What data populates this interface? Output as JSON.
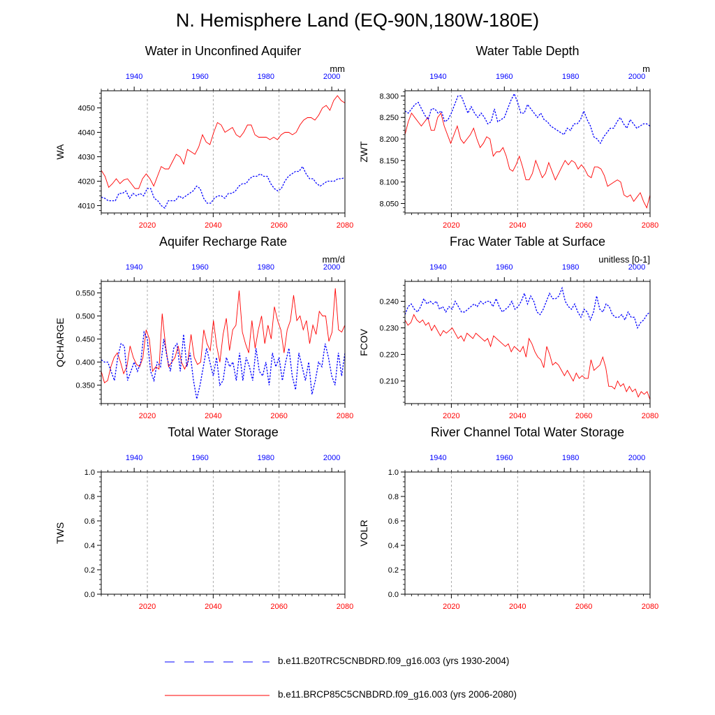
{
  "page": {
    "title": "N. Hemisphere Land (EQ-90N,180W-180E)"
  },
  "colors": {
    "rcp": "#ff0000",
    "hist": "#0000ff",
    "grid": "#999999",
    "axis": "#000000"
  },
  "legend": {
    "hist_label": "b.e11.B20TRC5CNBDRD.f09_g16.003 (yrs 1930-2004)",
    "rcp_label": "b.e11.BRCP85C5CNBDRD.f09_g16.003 (yrs 2006-2080)"
  },
  "chart_data": [
    {
      "type": "line",
      "title": "Water in Unconfined Aquifer",
      "ylabel": "WA",
      "units": "mm",
      "x_bottom": {
        "range": [
          2006,
          2080
        ],
        "ticks": [
          2020,
          2040,
          2060,
          2080
        ]
      },
      "x_top": {
        "range": [
          1930,
          2004
        ],
        "ticks": [
          1940,
          1960,
          1980,
          2000
        ]
      },
      "ylim": [
        4007,
        4057
      ],
      "yticks": [
        4010,
        4020,
        4030,
        4040,
        4050
      ],
      "ytick_labels": [
        "4010",
        "4020",
        "4030",
        "4040",
        "4050"
      ],
      "series": [
        {
          "name": "b.e11.BRCP85C5CNBDRD.f09_g16.003 (yrs 2006-2080)",
          "color": "#ff0000",
          "dashed": false,
          "values": [
            4024.5,
            4022,
            4017.5,
            4019,
            4021,
            4019,
            4020.5,
            4021,
            4019,
            4017,
            4017,
            4021,
            4023,
            4021,
            4018,
            4022,
            4026,
            4025,
            4025,
            4028,
            4031,
            4030,
            4027,
            4033,
            4032,
            4031,
            4034,
            4039,
            4036,
            4035,
            4040,
            4044,
            4043,
            4040,
            4041,
            4042,
            4039,
            4038,
            4040,
            4043,
            4043,
            4039,
            4038,
            4038,
            4038,
            4037,
            4038,
            4037,
            4039,
            4040,
            4040,
            4039,
            4040,
            4043,
            4045,
            4046,
            4046,
            4045,
            4047,
            4050,
            4051,
            4049,
            4053,
            4055,
            4053,
            4052
          ]
        },
        {
          "name": "b.e11.B20TRC5CNBDRD.f09_g16.003 (yrs 1930-2004)",
          "color": "#0000ff",
          "dashed": true,
          "values": [
            4013.5,
            4013,
            4012,
            4012,
            4012,
            4015,
            4015,
            4016,
            4013,
            4015,
            4014,
            4015,
            4014,
            4017,
            4017,
            4013,
            4012,
            4010,
            4009,
            4012,
            4012,
            4012,
            4014,
            4013,
            4014,
            4015,
            4016,
            4018,
            4017,
            4013,
            4011,
            4011,
            4013,
            4014,
            4014,
            4013,
            4015,
            4015,
            4016,
            4018,
            4019,
            4019,
            4021,
            4022,
            4022,
            4023,
            4022,
            4022,
            4019,
            4017,
            4016,
            4017,
            4020,
            4022,
            4023,
            4024,
            4024,
            4026,
            4023,
            4021,
            4021,
            4019,
            4018,
            4019,
            4020,
            4020,
            4020,
            4021,
            4021,
            4021.5
          ]
        }
      ]
    },
    {
      "type": "line",
      "title": "Water Table Depth",
      "ylabel": "ZWT",
      "units": "m",
      "x_bottom": {
        "range": [
          2006,
          2080
        ],
        "ticks": [
          2020,
          2040,
          2060,
          2080
        ]
      },
      "x_top": {
        "range": [
          1930,
          2004
        ],
        "ticks": [
          1940,
          1960,
          1980,
          2000
        ]
      },
      "ylim": [
        8.028,
        8.312
      ],
      "yticks": [
        8.05,
        8.1,
        8.15,
        8.2,
        8.25,
        8.3
      ],
      "ytick_labels": [
        "8.050",
        "8.100",
        "8.150",
        "8.200",
        "8.250",
        "8.300"
      ],
      "series": [
        {
          "name": "b.e11.BRCP85C5CNBDRD.f09_g16.003 (yrs 2006-2080)",
          "color": "#ff0000",
          "dashed": false,
          "values": [
            8.21,
            8.24,
            8.26,
            8.25,
            8.24,
            8.23,
            8.24,
            8.25,
            8.22,
            8.22,
            8.25,
            8.26,
            8.23,
            8.21,
            8.19,
            8.21,
            8.23,
            8.2,
            8.19,
            8.2,
            8.21,
            8.225,
            8.2,
            8.18,
            8.19,
            8.205,
            8.2,
            8.16,
            8.17,
            8.17,
            8.18,
            8.16,
            8.13,
            8.125,
            8.14,
            8.16,
            8.135,
            8.105,
            8.105,
            8.12,
            8.15,
            8.13,
            8.11,
            8.12,
            8.145,
            8.125,
            8.105,
            8.12,
            8.135,
            8.15,
            8.14,
            8.15,
            8.145,
            8.13,
            8.14,
            8.13,
            8.115,
            8.11,
            8.135,
            8.135,
            8.13,
            8.115,
            8.09,
            8.095,
            8.1,
            8.105,
            8.1,
            8.07,
            8.065,
            8.07,
            8.055,
            8.065,
            8.075,
            8.055,
            8.04,
            8.07
          ]
        },
        {
          "name": "b.e11.B20TRC5CNBDRD.f09_g16.003 (yrs 1930-2004)",
          "color": "#0000ff",
          "dashed": true,
          "values": [
            8.265,
            8.26,
            8.27,
            8.28,
            8.285,
            8.27,
            8.255,
            8.245,
            8.27,
            8.27,
            8.26,
            8.265,
            8.24,
            8.245,
            8.26,
            8.28,
            8.3,
            8.3,
            8.28,
            8.26,
            8.275,
            8.26,
            8.25,
            8.26,
            8.25,
            8.235,
            8.24,
            8.27,
            8.24,
            8.245,
            8.25,
            8.27,
            8.29,
            8.305,
            8.285,
            8.26,
            8.26,
            8.28,
            8.27,
            8.26,
            8.25,
            8.26,
            8.245,
            8.24,
            8.23,
            8.225,
            8.22,
            8.215,
            8.21,
            8.225,
            8.22,
            8.235,
            8.235,
            8.245,
            8.265,
            8.245,
            8.23,
            8.205,
            8.2,
            8.19,
            8.205,
            8.215,
            8.225,
            8.225,
            8.24,
            8.25,
            8.235,
            8.225,
            8.245,
            8.235,
            8.225,
            8.23,
            8.235,
            8.235,
            8.23
          ]
        }
      ]
    },
    {
      "type": "line",
      "title": "Aquifer Recharge Rate",
      "ylabel": "QCHARGE",
      "units": "mm/d",
      "x_bottom": {
        "range": [
          2006,
          2080
        ],
        "ticks": [
          2020,
          2040,
          2060,
          2080
        ]
      },
      "x_top": {
        "range": [
          1930,
          2004
        ],
        "ticks": [
          1940,
          1960,
          1980,
          2000
        ]
      },
      "ylim": [
        0.31,
        0.575
      ],
      "yticks": [
        0.35,
        0.4,
        0.45,
        0.5,
        0.55
      ],
      "ytick_labels": [
        "0.350",
        "0.400",
        "0.450",
        "0.500",
        "0.550"
      ],
      "series": [
        {
          "name": "b.e11.BRCP85C5CNBDRD.f09_g16.003 (yrs 2006-2080)",
          "color": "#ff0000",
          "dashed": false,
          "values": [
            0.38,
            0.355,
            0.36,
            0.39,
            0.41,
            0.42,
            0.4,
            0.375,
            0.39,
            0.435,
            0.41,
            0.395,
            0.39,
            0.41,
            0.47,
            0.45,
            0.38,
            0.39,
            0.385,
            0.505,
            0.44,
            0.39,
            0.4,
            0.41,
            0.435,
            0.4,
            0.385,
            0.4,
            0.46,
            0.41,
            0.395,
            0.4,
            0.47,
            0.44,
            0.425,
            0.49,
            0.435,
            0.4,
            0.46,
            0.495,
            0.425,
            0.47,
            0.48,
            0.555,
            0.465,
            0.44,
            0.42,
            0.49,
            0.43,
            0.47,
            0.5,
            0.44,
            0.48,
            0.45,
            0.52,
            0.49,
            0.47,
            0.42,
            0.47,
            0.49,
            0.545,
            0.49,
            0.5,
            0.47,
            0.49,
            0.44,
            0.48,
            0.46,
            0.51,
            0.5,
            0.5,
            0.445,
            0.465,
            0.56,
            0.47,
            0.465,
            0.48
          ]
        },
        {
          "name": "b.e11.B20TRC5CNBDRD.f09_g16.003 (yrs 1930-2004)",
          "color": "#0000ff",
          "dashed": true,
          "values": [
            0.405,
            0.4,
            0.4,
            0.38,
            0.36,
            0.41,
            0.44,
            0.435,
            0.36,
            0.38,
            0.4,
            0.38,
            0.4,
            0.465,
            0.45,
            0.38,
            0.36,
            0.4,
            0.39,
            0.45,
            0.41,
            0.38,
            0.43,
            0.44,
            0.38,
            0.46,
            0.39,
            0.42,
            0.36,
            0.32,
            0.35,
            0.39,
            0.43,
            0.4,
            0.37,
            0.41,
            0.35,
            0.36,
            0.41,
            0.39,
            0.4,
            0.36,
            0.42,
            0.36,
            0.41,
            0.39,
            0.36,
            0.43,
            0.38,
            0.37,
            0.4,
            0.35,
            0.42,
            0.39,
            0.41,
            0.36,
            0.4,
            0.43,
            0.37,
            0.34,
            0.42,
            0.39,
            0.36,
            0.4,
            0.33,
            0.36,
            0.4,
            0.39,
            0.44,
            0.41,
            0.37,
            0.35,
            0.42,
            0.37,
            0.42
          ]
        }
      ]
    },
    {
      "type": "line",
      "title": "Frac Water Table at Surface",
      "ylabel": "FCOV",
      "units": "unitless [0-1]",
      "x_bottom": {
        "range": [
          2006,
          2080
        ],
        "ticks": [
          2020,
          2040,
          2060,
          2080
        ]
      },
      "x_top": {
        "range": [
          1930,
          2004
        ],
        "ticks": [
          1940,
          1960,
          1980,
          2000
        ]
      },
      "ylim": [
        0.2015,
        0.2475
      ],
      "yticks": [
        0.21,
        0.22,
        0.23,
        0.24
      ],
      "ytick_labels": [
        "0.210",
        "0.220",
        "0.230",
        "0.240"
      ],
      "series": [
        {
          "name": "b.e11.BRCP85C5CNBDRD.f09_g16.003 (yrs 2006-2080)",
          "color": "#ff0000",
          "dashed": false,
          "values": [
            0.233,
            0.231,
            0.232,
            0.235,
            0.233,
            0.232,
            0.233,
            0.231,
            0.232,
            0.229,
            0.231,
            0.229,
            0.227,
            0.229,
            0.228,
            0.229,
            0.23,
            0.228,
            0.226,
            0.227,
            0.225,
            0.228,
            0.227,
            0.226,
            0.228,
            0.227,
            0.226,
            0.225,
            0.226,
            0.223,
            0.227,
            0.226,
            0.225,
            0.224,
            0.223,
            0.224,
            0.221,
            0.223,
            0.222,
            0.221,
            0.223,
            0.219,
            0.226,
            0.224,
            0.221,
            0.219,
            0.218,
            0.215,
            0.223,
            0.22,
            0.216,
            0.217,
            0.216,
            0.214,
            0.212,
            0.214,
            0.212,
            0.21,
            0.213,
            0.211,
            0.212,
            0.211,
            0.211,
            0.218,
            0.214,
            0.215,
            0.216,
            0.219,
            0.215,
            0.208,
            0.208,
            0.207,
            0.21,
            0.208,
            0.209,
            0.206,
            0.208,
            0.206,
            0.207,
            0.204,
            0.206,
            0.205,
            0.206,
            0.203
          ]
        },
        {
          "name": "b.e11.B20TRC5CNBDRD.f09_g16.003 (yrs 1930-2004)",
          "color": "#0000ff",
          "dashed": true,
          "values": [
            0.235,
            0.238,
            0.239,
            0.237,
            0.236,
            0.238,
            0.241,
            0.239,
            0.24,
            0.239,
            0.24,
            0.237,
            0.238,
            0.236,
            0.238,
            0.237,
            0.24,
            0.238,
            0.236,
            0.236,
            0.237,
            0.238,
            0.239,
            0.238,
            0.24,
            0.239,
            0.24,
            0.24,
            0.238,
            0.241,
            0.238,
            0.236,
            0.237,
            0.238,
            0.24,
            0.237,
            0.238,
            0.24,
            0.243,
            0.239,
            0.242,
            0.24,
            0.236,
            0.235,
            0.237,
            0.24,
            0.243,
            0.241,
            0.241,
            0.242,
            0.245,
            0.24,
            0.238,
            0.237,
            0.239,
            0.236,
            0.234,
            0.237,
            0.236,
            0.233,
            0.236,
            0.242,
            0.237,
            0.236,
            0.239,
            0.238,
            0.235,
            0.234,
            0.234,
            0.235,
            0.233,
            0.236,
            0.234,
            0.234,
            0.23,
            0.232,
            0.233,
            0.235,
            0.236
          ]
        }
      ]
    },
    {
      "type": "line",
      "title": "Total Water Storage",
      "ylabel": "TWS",
      "units": "",
      "x_bottom": {
        "range": [
          2006,
          2080
        ],
        "ticks": [
          2020,
          2040,
          2060,
          2080
        ]
      },
      "x_top": {
        "range": [
          1930,
          2004
        ],
        "ticks": [
          1940,
          1960,
          1980,
          2000
        ]
      },
      "ylim": [
        0,
        1
      ],
      "yticks": [
        0,
        0.2,
        0.4,
        0.6,
        0.8,
        1.0
      ],
      "ytick_labels": [
        "0.0",
        "0.2",
        "0.4",
        "0.6",
        "0.8",
        "1.0"
      ],
      "series": []
    },
    {
      "type": "line",
      "title": "River Channel Total Water Storage",
      "ylabel": "VOLR",
      "units": "",
      "x_bottom": {
        "range": [
          2006,
          2080
        ],
        "ticks": [
          2020,
          2040,
          2060,
          2080
        ]
      },
      "x_top": {
        "range": [
          1930,
          2004
        ],
        "ticks": [
          1940,
          1960,
          1980,
          2000
        ]
      },
      "ylim": [
        0,
        1
      ],
      "yticks": [
        0,
        0.2,
        0.4,
        0.6,
        0.8,
        1.0
      ],
      "ytick_labels": [
        "0.0",
        "0.2",
        "0.4",
        "0.6",
        "0.8",
        "1.0"
      ],
      "series": []
    }
  ]
}
